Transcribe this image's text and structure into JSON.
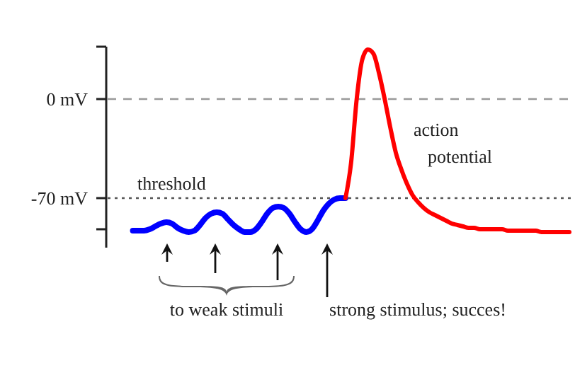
{
  "chart_data": {
    "type": "line",
    "categories": [
      null,
      null,
      null,
      null,
      null,
      null,
      null,
      null,
      null,
      null,
      null,
      null,
      null,
      null,
      null,
      null,
      null,
      null,
      null,
      null,
      null,
      null,
      null,
      null,
      null,
      null,
      null,
      null,
      null,
      null,
      null,
      null,
      null,
      null,
      null,
      null,
      null,
      null,
      null,
      null,
      null,
      null,
      null,
      null,
      null,
      null,
      null,
      null,
      null,
      null,
      null,
      null,
      null,
      null,
      null,
      null,
      null,
      null,
      null,
      null,
      null,
      null,
      null,
      null,
      null,
      null,
      null,
      null,
      null,
      null,
      null,
      null,
      null,
      null,
      null,
      null,
      null,
      null,
      null,
      null,
      null,
      null,
      null
    ],
    "series": [
      {
        "color": "#0000ff",
        "values": [
          null,
          null,
          null,
          null,
          -93,
          -93,
          -93,
          -92,
          -90,
          -88,
          -87,
          -88,
          -91,
          -93,
          -94,
          -93,
          -89,
          -84,
          -81,
          -80,
          -81,
          -85,
          -89,
          -92,
          -94,
          -94,
          -92,
          -87,
          -81,
          -77,
          -76,
          -77,
          -81,
          -87,
          -92,
          -94,
          -92,
          -86,
          -79,
          -74,
          -71,
          -70,
          -70,
          null,
          null,
          null,
          null,
          null,
          null,
          null,
          null,
          null,
          null,
          null,
          null,
          null,
          null,
          null,
          null,
          null,
          null,
          null,
          null,
          null,
          null,
          null,
          null,
          null,
          null,
          null,
          null,
          null,
          null,
          null,
          null,
          null,
          null,
          null,
          null,
          null,
          null,
          null,
          null
        ]
      },
      {
        "color": "#ff0000",
        "values": [
          null,
          null,
          null,
          null,
          null,
          null,
          null,
          null,
          null,
          null,
          null,
          null,
          null,
          null,
          null,
          null,
          null,
          null,
          null,
          null,
          null,
          null,
          null,
          null,
          null,
          null,
          null,
          null,
          null,
          null,
          null,
          null,
          null,
          null,
          null,
          null,
          null,
          null,
          null,
          null,
          null,
          null,
          -70,
          -45,
          0,
          28,
          35,
          32,
          18,
          0,
          -20,
          -38,
          -50,
          -60,
          -68,
          -73,
          -77,
          -80,
          -82,
          -84,
          -86,
          -88,
          -89,
          -90,
          -91,
          -91,
          -92,
          -92,
          -92,
          -92,
          -92,
          -93,
          -93,
          -93,
          -93,
          -93,
          -93,
          -94,
          -94,
          -94,
          -94,
          -94,
          -94
        ]
      }
    ],
    "ylim": [
      -105,
      37
    ],
    "yticks": [
      {
        "value": 37,
        "label": null
      },
      {
        "value": 0,
        "label": "0 mV"
      },
      {
        "value": -70,
        "label": "-70 mV"
      },
      {
        "value": -92,
        "label": null
      }
    ],
    "ref_lines": [
      {
        "axis": "y",
        "value": 0,
        "color": "#999999",
        "line_style": "dashed"
      },
      {
        "axis": "y",
        "value": -70,
        "label": "threshold",
        "color": "#555555",
        "line_style": "dotted"
      }
    ],
    "annotations": [
      "action potential",
      "to weak stimuli",
      "strong stimulus; succes!"
    ],
    "tick_labels": "y",
    "grid": false,
    "marker": "none",
    "line_style": "solid"
  }
}
